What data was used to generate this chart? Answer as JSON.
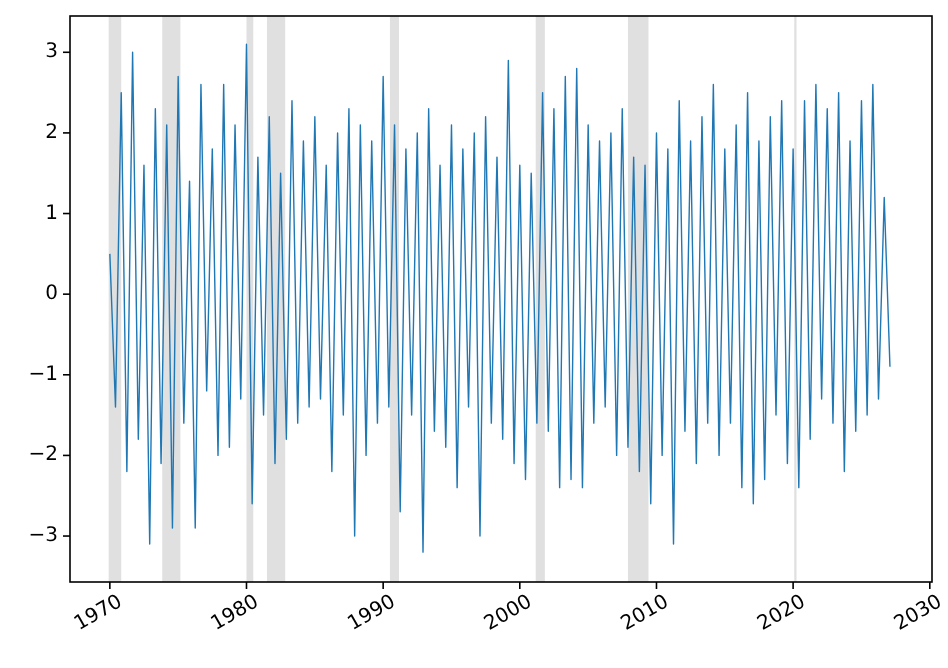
{
  "chart_data": {
    "type": "line",
    "x": [
      "1970-01",
      "1970-06",
      "1970-11",
      "1971-04",
      "1971-09",
      "1972-02",
      "1972-07",
      "1972-12",
      "1973-05",
      "1973-10",
      "1974-03",
      "1974-08",
      "1975-01",
      "1975-06",
      "1975-11",
      "1976-04",
      "1976-09",
      "1977-02",
      "1977-07",
      "1977-12",
      "1978-05",
      "1978-10",
      "1979-03",
      "1979-08",
      "1980-01",
      "1980-06",
      "1980-11",
      "1981-04",
      "1981-09",
      "1982-02",
      "1982-07",
      "1982-12",
      "1983-05",
      "1983-10",
      "1984-03",
      "1984-08",
      "1985-01",
      "1985-06",
      "1985-11",
      "1986-04",
      "1986-09",
      "1987-02",
      "1987-07",
      "1987-12",
      "1988-05",
      "1988-10",
      "1989-03",
      "1989-08",
      "1990-01",
      "1990-06",
      "1990-11",
      "1991-04",
      "1991-09",
      "1992-02",
      "1992-07",
      "1992-12",
      "1993-05",
      "1993-10",
      "1994-03",
      "1994-08",
      "1995-01",
      "1995-06",
      "1995-11",
      "1996-04",
      "1996-09",
      "1997-02",
      "1997-07",
      "1997-12",
      "1998-05",
      "1998-10",
      "1999-03",
      "1999-08",
      "2000-01",
      "2000-06",
      "2000-11",
      "2001-04",
      "2001-09",
      "2002-02",
      "2002-07",
      "2002-12",
      "2003-05",
      "2003-10",
      "2004-03",
      "2004-08",
      "2005-01",
      "2005-06",
      "2005-11",
      "2006-04",
      "2006-09",
      "2007-02",
      "2007-07",
      "2007-12",
      "2008-05",
      "2008-10",
      "2009-03",
      "2009-08",
      "2010-01",
      "2010-06",
      "2010-11",
      "2011-04",
      "2011-09",
      "2012-02",
      "2012-07",
      "2012-12",
      "2013-05",
      "2013-10",
      "2014-03",
      "2014-08",
      "2015-01",
      "2015-06",
      "2015-11",
      "2016-04",
      "2016-09",
      "2017-02",
      "2017-07",
      "2017-12",
      "2018-05",
      "2018-10",
      "2019-03",
      "2019-08",
      "2020-01",
      "2020-06",
      "2020-11",
      "2021-04",
      "2021-09",
      "2022-02",
      "2022-07",
      "2022-12",
      "2023-05",
      "2023-10",
      "2024-03",
      "2024-08",
      "2025-01",
      "2025-06",
      "2025-11",
      "2026-04",
      "2026-09",
      "2027-02"
    ],
    "series": [
      {
        "color": "#1f77b4",
        "values": [
          0.5,
          -1.4,
          2.5,
          -2.2,
          3.0,
          -1.8,
          1.6,
          -3.1,
          2.3,
          -2.1,
          2.1,
          -2.9,
          2.7,
          -1.6,
          1.4,
          -2.9,
          2.6,
          -1.2,
          1.8,
          -2.0,
          2.6,
          -1.9,
          2.1,
          -1.3,
          3.1,
          -2.6,
          1.7,
          -1.5,
          2.2,
          -2.1,
          1.5,
          -1.8,
          2.4,
          -1.6,
          1.9,
          -1.4,
          2.2,
          -1.3,
          1.6,
          -2.2,
          2.0,
          -1.5,
          2.3,
          -3.0,
          2.1,
          -2.0,
          1.9,
          -1.6,
          2.7,
          -1.4,
          2.1,
          -2.7,
          1.8,
          -1.5,
          2.0,
          -3.2,
          2.3,
          -1.7,
          1.6,
          -1.9,
          2.1,
          -2.4,
          1.8,
          -1.4,
          2.0,
          -3.0,
          2.2,
          -1.6,
          1.7,
          -1.8,
          2.9,
          -2.1,
          1.6,
          -2.3,
          1.5,
          -1.6,
          2.5,
          -1.7,
          2.3,
          -2.4,
          2.7,
          -2.3,
          2.8,
          -2.4,
          2.1,
          -1.6,
          1.9,
          -1.4,
          2.0,
          -2.0,
          2.3,
          -1.9,
          1.7,
          -2.2,
          1.6,
          -2.6,
          2.0,
          -2.0,
          1.8,
          -3.1,
          2.4,
          -1.7,
          1.9,
          -2.1,
          2.2,
          -1.6,
          2.6,
          -2.0,
          1.8,
          -1.6,
          2.1,
          -2.4,
          2.5,
          -2.6,
          1.9,
          -2.3,
          2.2,
          -1.5,
          2.4,
          -2.1,
          1.8,
          -2.4,
          2.4,
          -1.8,
          2.6,
          -1.3,
          2.3,
          -1.6,
          2.5,
          -2.2,
          1.9,
          -1.7,
          2.4,
          -1.5,
          2.6,
          -1.3,
          1.2,
          -0.9
        ]
      }
    ],
    "xlim": [
      "1967-02",
      "2030-03"
    ],
    "xticks": [
      "1970",
      "1980",
      "1990",
      "2000",
      "2010",
      "2020",
      "2030"
    ],
    "ylim": [
      -3.57,
      3.45
    ],
    "yticks": [
      {
        "value": -3,
        "label": "−3"
      },
      {
        "value": -2,
        "label": "−2"
      },
      {
        "value": -1,
        "label": "−1"
      },
      0,
      1,
      2,
      3
    ],
    "bands": [
      {
        "axis": "x",
        "from": "1969-12",
        "to": "1970-11",
        "color": "#e0e0e0"
      },
      {
        "axis": "x",
        "from": "1973-11",
        "to": "1975-03",
        "color": "#e0e0e0"
      },
      {
        "axis": "x",
        "from": "1980-01",
        "to": "1980-07",
        "color": "#e0e0e0"
      },
      {
        "axis": "x",
        "from": "1981-07",
        "to": "1982-11",
        "color": "#e0e0e0"
      },
      {
        "axis": "x",
        "from": "1990-07",
        "to": "1991-03",
        "color": "#e0e0e0"
      },
      {
        "axis": "x",
        "from": "2001-03",
        "to": "2001-11",
        "color": "#e0e0e0"
      },
      {
        "axis": "x",
        "from": "2007-12",
        "to": "2009-06",
        "color": "#e0e0e0"
      },
      {
        "axis": "x",
        "from": "2020-02",
        "to": "2020-04",
        "color": "#e0e0e0"
      }
    ]
  }
}
